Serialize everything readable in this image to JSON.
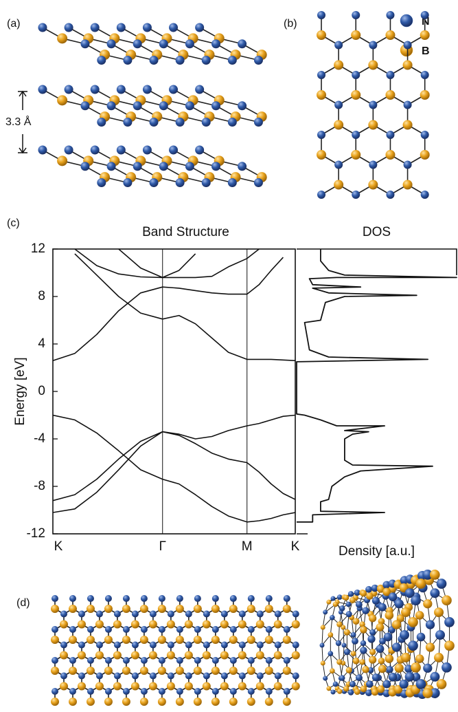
{
  "panel_labels": {
    "a": "(a)",
    "b": "(b)",
    "c": "(c)",
    "d": "(d)"
  },
  "interlayer_distance": "3.3 Å",
  "legend": [
    {
      "name": "N",
      "color": "#2f5aa8"
    },
    {
      "name": "B",
      "color": "#e8a21c"
    }
  ],
  "chart_data": [
    {
      "type": "line",
      "title": "Band Structure",
      "y_label": "Energy [eV]",
      "color": "#111111",
      "x": [
        0,
        0.2,
        0.4,
        0.6,
        0.8,
        1.0,
        1.15,
        1.3,
        1.45,
        1.6,
        1.77,
        1.88,
        1.99,
        2.1,
        2.21
      ],
      "xlim": [
        0,
        2.21
      ],
      "xticks": [
        {
          "value": 0,
          "label": "K"
        },
        {
          "value": 1.0,
          "label": "Γ"
        },
        {
          "value": 1.77,
          "label": "M"
        },
        {
          "value": 2.21,
          "label": "K"
        }
      ],
      "x_grid": true,
      "ylim": [
        -12,
        12
      ],
      "yticks": [
        12,
        8,
        4,
        0,
        -4,
        -8,
        -12
      ],
      "series": [
        {
          "values": [
            -2,
            -2.4,
            -3.5,
            -5.0,
            -6.6,
            -7.4,
            -7.8,
            -8.7,
            -9.7,
            -10.5,
            -11.0,
            -10.9,
            -10.7,
            -10.4,
            -10.2
          ]
        },
        {
          "values": [
            -9.2,
            -8.7,
            -7.4,
            -5.7,
            -4.2,
            -3.4,
            -3.7,
            -4.4,
            -5.2,
            -5.7,
            -6.0,
            -6.8,
            -7.8,
            -8.6,
            -9.1
          ]
        },
        {
          "values": [
            -10.2,
            -9.9,
            -8.5,
            -6.6,
            -4.6,
            -3.4,
            -3.6,
            -4.0,
            -3.8,
            -3.3,
            -2.9,
            -2.7,
            -2.4,
            -2.1,
            -2.0
          ]
        },
        {
          "values": [
            2.6,
            3.2,
            4.8,
            6.8,
            8.3,
            8.8,
            8.7,
            8.5,
            8.3,
            8.2,
            8.2,
            9.0,
            10.2,
            11.3,
            null
          ]
        },
        {
          "values": [
            null,
            11.6,
            9.8,
            8.0,
            6.6,
            6.1,
            6.4,
            5.7,
            4.5,
            3.3,
            2.7,
            2.7,
            2.7,
            2.65,
            2.6
          ]
        },
        {
          "values": [
            null,
            12,
            10.6,
            9.9,
            9.65,
            9.6,
            9.6,
            9.6,
            9.7,
            10.5,
            11.2,
            12,
            null,
            null,
            null
          ]
        },
        {
          "values": [
            null,
            null,
            null,
            12,
            10.4,
            9.6,
            10.2,
            11.6,
            null,
            null,
            null,
            null,
            null,
            null,
            null
          ]
        }
      ]
    },
    {
      "type": "dos",
      "title": "DOS",
      "x_label": "Density [a.u.]",
      "color": "#111111",
      "xlim": [
        0,
        1
      ],
      "ylim": [
        -12,
        12
      ],
      "x": [
        0,
        0.1,
        0.1,
        0.55,
        0.15,
        0.15,
        0.2,
        0.22,
        0.3,
        0.4,
        0.85,
        0.35,
        0.3,
        0.3,
        0.35,
        0.45,
        0.3,
        0.55,
        0.25,
        0.15,
        0.05,
        0,
        0,
        0.82,
        0.2,
        0.08,
        0.05,
        0.15,
        0.18,
        0.3,
        0.75,
        0.2,
        0.1,
        0.4,
        0.1,
        0.08,
        0.25,
        1,
        0.3,
        0.2,
        0.15,
        0.15
      ],
      "values": [
        -11,
        -11,
        -10.4,
        -10.2,
        -10.1,
        -9.3,
        -9.1,
        -8.0,
        -7.2,
        -6.7,
        -6.3,
        -6.2,
        -5.8,
        -4.0,
        -3.6,
        -3.4,
        -3.3,
        -2.9,
        -2.9,
        -2.4,
        -2.0,
        -1.9,
        2.5,
        2.7,
        2.9,
        3.5,
        5.8,
        6.0,
        7.5,
        8.0,
        8.1,
        8.3,
        8.7,
        8.8,
        9.0,
        9.5,
        9.6,
        9.6,
        9.8,
        10.2,
        11,
        12
      ]
    }
  ]
}
